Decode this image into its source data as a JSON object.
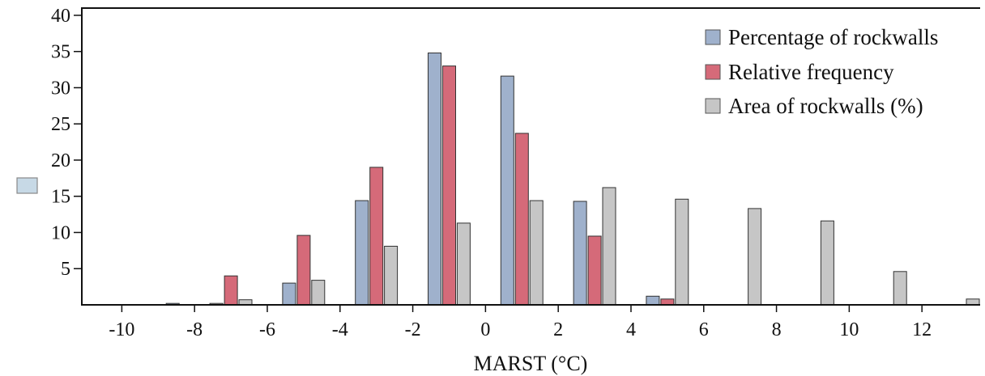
{
  "chart_data": {
    "type": "bar",
    "xlabel": "MARST (°C)",
    "ylabel": "",
    "xlim": [
      -11.1,
      13.6
    ],
    "ylim": [
      0,
      41
    ],
    "xticks": [
      "-10",
      "-8",
      "-6",
      "-4",
      "-2",
      "0",
      "2",
      "4",
      "6",
      "8",
      "10",
      "12"
    ],
    "yticks": [
      "5",
      "10",
      "15",
      "20",
      "25",
      "30",
      "35",
      "40"
    ],
    "legend_position": "top-right",
    "series": [
      {
        "name": "Percentage of rockwalls",
        "color": "#9fb1cc",
        "x": [
          -8.6,
          -5.4,
          -3.4,
          -1.4,
          0.6,
          2.6,
          4.6
        ],
        "values": [
          0.2,
          3.0,
          14.4,
          34.8,
          31.6,
          14.3,
          1.2
        ]
      },
      {
        "name": "Relative frequency",
        "color": "#d56a79",
        "x": [
          -7.0,
          -5.0,
          -3.0,
          -1.0,
          1.0,
          3.0,
          5.0
        ],
        "values": [
          4.0,
          9.6,
          19.0,
          33.0,
          23.7,
          9.5,
          0.8
        ]
      },
      {
        "name": "Area of rockwalls (%)",
        "color": "#c6c6c6",
        "x": [
          -7.4,
          -6.6,
          -4.6,
          -2.6,
          -0.6,
          1.4,
          3.4,
          5.4,
          7.4,
          9.4,
          11.4,
          13.4
        ],
        "values": [
          0.2,
          0.7,
          3.4,
          8.1,
          11.3,
          14.4,
          16.2,
          14.6,
          13.3,
          11.6,
          4.6,
          0.8
        ]
      }
    ],
    "extra_legend_swatch_color": "#c7d9e6"
  }
}
